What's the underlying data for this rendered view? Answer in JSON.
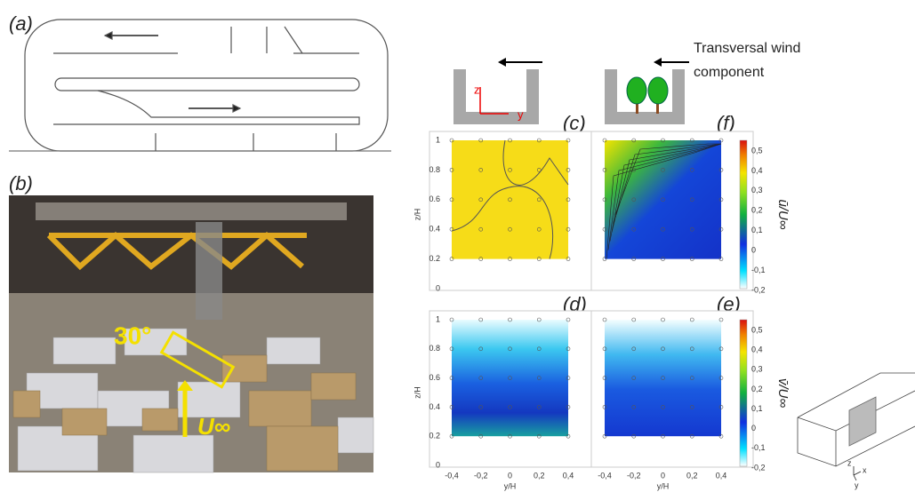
{
  "panel_labels": [
    "(a)",
    "(b)",
    "(c)",
    "(d)",
    "(e)",
    "(f)"
  ],
  "photo": {
    "angle_label": "30°",
    "velocity_label": "U∞"
  },
  "legend": {
    "line1": "Transversal wind",
    "line2": "component"
  },
  "inset": {
    "z": "z",
    "y": "y"
  },
  "plots": {
    "y_label": "z/H",
    "x_label": "y/H",
    "y_ticks": [
      "0",
      "0.2",
      "0.4",
      "0.6",
      "0.8",
      "1"
    ],
    "x_ticks": [
      "-0,4",
      "-0,2",
      "0",
      "0,2",
      "0,4"
    ]
  },
  "colorbars": {
    "ticks": [
      "0,5",
      "0,4",
      "0,3",
      "0,2",
      "0,1",
      "0",
      "-0,1",
      "-0,2"
    ],
    "u_label": "ū/U∞",
    "v_label": "v̄/U∞"
  },
  "axes3d": {
    "z": "z",
    "x": "x",
    "y": "y"
  }
}
